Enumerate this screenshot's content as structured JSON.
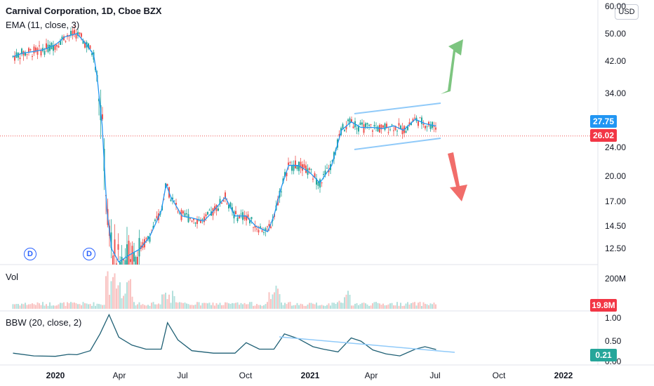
{
  "header": {
    "title": "Carnival Corporation, 1D, Cboe BZX",
    "ema_label": "EMA (11, close, 3)",
    "currency_button": "USD"
  },
  "price_tags": {
    "ema": {
      "value": "27.75",
      "color": "#2196f3"
    },
    "last": {
      "value": "26.02",
      "color": "#f23645"
    },
    "volume": {
      "value": "19.8M",
      "color": "#f23645"
    },
    "bbw": {
      "value": "0.21",
      "color": "#26a69a"
    }
  },
  "markers": {
    "dividend": "D"
  },
  "panes": {
    "volume_label": "Vol",
    "bbw_label": "BBW (20, close, 2)"
  },
  "y_axis_price": [
    "60.00",
    "50.00",
    "42.00",
    "34.00",
    "24.00",
    "20.00",
    "17.00",
    "14.50",
    "12.50"
  ],
  "y_axis_volume": [
    "200M"
  ],
  "y_axis_bbw": [
    "1.00",
    "0.50",
    "0.00"
  ],
  "x_axis": [
    "2020",
    "Apr",
    "Jul",
    "Oct",
    "2021",
    "Apr",
    "Jul",
    "Oct",
    "2022"
  ],
  "chart_data": {
    "type": "line",
    "title": "Carnival Corporation, 1D, Cboe BZX",
    "scale": "log",
    "ylim": [
      10.5,
      60
    ],
    "grid": false,
    "colors": {
      "up": "#26a69a",
      "down": "#ef5350",
      "ema": "#2196f3",
      "channel": "#90caf9",
      "bull_arrow": "#66bb6a",
      "bear_arrow": "#ef5350"
    },
    "series": [
      {
        "name": "EMA (11, close, 3)",
        "x": [
          "2019-11-01",
          "2019-11-15",
          "2019-12-01",
          "2019-12-15",
          "2020-01-01",
          "2020-01-15",
          "2020-02-01",
          "2020-02-15",
          "2020-02-25",
          "2020-03-01",
          "2020-03-08",
          "2020-03-15",
          "2020-03-22",
          "2020-04-01",
          "2020-04-15",
          "2020-05-01",
          "2020-05-15",
          "2020-06-01",
          "2020-06-08",
          "2020-06-15",
          "2020-07-01",
          "2020-07-15",
          "2020-08-01",
          "2020-08-15",
          "2020-09-01",
          "2020-09-15",
          "2020-10-01",
          "2020-10-15",
          "2020-11-01",
          "2020-11-10",
          "2020-11-20",
          "2020-12-01",
          "2020-12-15",
          "2021-01-01",
          "2021-01-15",
          "2021-02-01",
          "2021-02-15",
          "2021-03-01",
          "2021-03-15",
          "2021-04-01",
          "2021-04-15",
          "2021-05-01",
          "2021-05-15",
          "2021-06-01",
          "2021-06-15",
          "2021-07-01"
        ],
        "values": [
          43.5,
          44.5,
          45,
          45.5,
          47,
          49.5,
          50.5,
          47,
          44,
          38,
          28,
          16,
          12.5,
          11.5,
          12,
          12.5,
          13.5,
          16,
          19,
          17.5,
          15.5,
          15.3,
          15,
          16,
          17.5,
          15.5,
          15.5,
          14.5,
          14,
          15.5,
          18.5,
          21.5,
          21.5,
          20.5,
          19.2,
          21.5,
          27,
          28.5,
          27.5,
          27.5,
          27.3,
          27.8,
          27,
          29,
          28.2,
          27.75
        ]
      }
    ],
    "volume_series": {
      "name": "Vol",
      "last": "19.8M",
      "ylim": [
        0,
        200
      ]
    },
    "bbw_series": {
      "name": "BBW (20, close, 2)",
      "x": [
        "2019-11-01",
        "2019-12-01",
        "2020-01-01",
        "2020-01-20",
        "2020-02-01",
        "2020-02-20",
        "2020-03-05",
        "2020-03-18",
        "2020-04-01",
        "2020-04-20",
        "2020-05-10",
        "2020-06-01",
        "2020-06-10",
        "2020-06-25",
        "2020-07-15",
        "2020-08-15",
        "2020-09-15",
        "2020-10-01",
        "2020-10-20",
        "2020-11-10",
        "2020-11-25",
        "2020-12-15",
        "2021-01-05",
        "2021-01-20",
        "2021-02-10",
        "2021-03-01",
        "2021-03-15",
        "2021-04-01",
        "2021-04-20",
        "2021-05-10",
        "2021-06-01",
        "2021-06-15",
        "2021-07-01"
      ],
      "values": [
        0.12,
        0.05,
        0.04,
        0.09,
        0.08,
        0.18,
        0.6,
        1.08,
        0.52,
        0.32,
        0.22,
        0.22,
        0.88,
        0.45,
        0.18,
        0.12,
        0.12,
        0.38,
        0.22,
        0.22,
        0.6,
        0.48,
        0.28,
        0.22,
        0.15,
        0.5,
        0.42,
        0.2,
        0.1,
        0.05,
        0.22,
        0.28,
        0.21
      ],
      "ylim": [
        0,
        1.2
      ]
    }
  }
}
